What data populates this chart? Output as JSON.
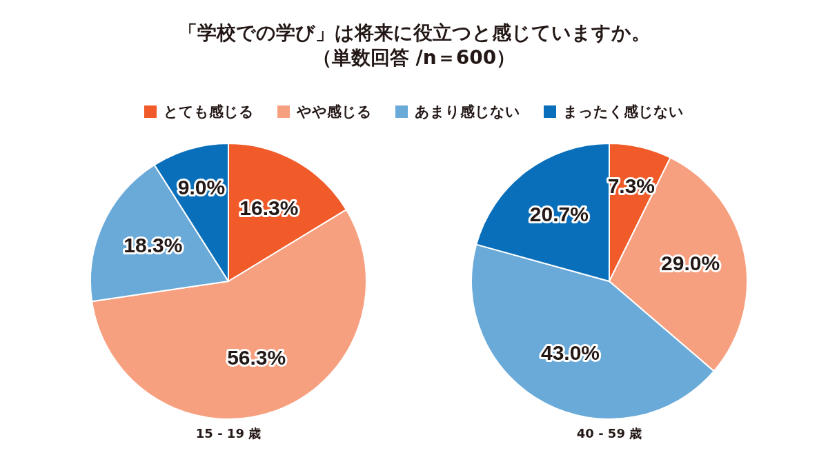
{
  "chart_data": [
    {
      "type": "pie",
      "title": "「学校での学び」は将来に役立つと感じていますか。",
      "subtitle": "（単数回答 /n＝600）",
      "legend": "top",
      "xlabel": "15 - 19 歳",
      "categories": [
        "とても感じる",
        "やや感じる",
        "あまり感じない",
        "まったく感じない"
      ],
      "values": [
        16.3,
        56.3,
        18.3,
        9.0
      ],
      "value_labels": [
        "16.3%",
        "56.3%",
        "18.3%",
        "9.0%"
      ],
      "colors": [
        "#f15a29",
        "#f7a080",
        "#6aaad9",
        "#0a6fba"
      ]
    },
    {
      "type": "pie",
      "xlabel": "40 - 59 歳",
      "values": [
        7.3,
        29.0,
        43.0,
        20.7
      ],
      "value_labels": [
        "7.3%",
        "29.0%",
        "43.0%",
        "20.7%"
      ],
      "colors": [
        "#f15a29",
        "#f7a080",
        "#6aaad9",
        "#0a6fba"
      ]
    }
  ]
}
